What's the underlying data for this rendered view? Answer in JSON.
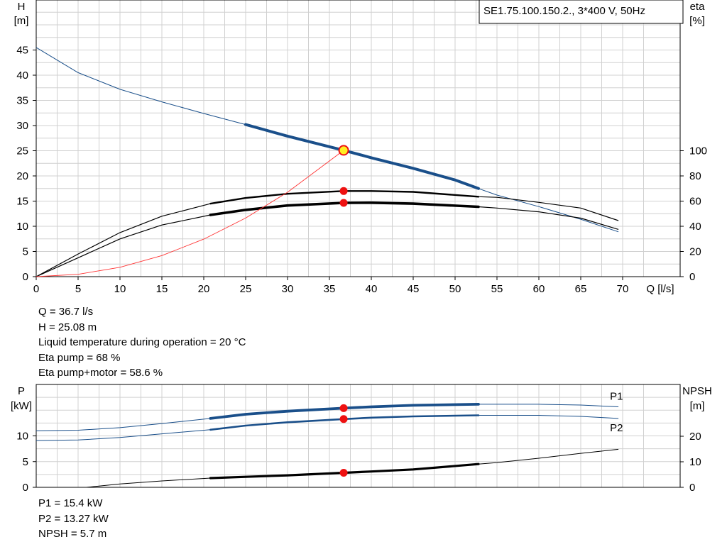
{
  "pump_label": "SE1.75.100.150.2., 3*400 V, 50Hz",
  "operating_point": [
    "Q = 36.7 l/s",
    "H = 25.08 m",
    "Liquid temperature during operation = 20 °C",
    "Eta pump = 68 %",
    "Eta pump+motor = 58.6 %"
  ],
  "power_results": [
    "P1 = 15.4 kW",
    "P2 = 13.27 kW",
    "NPSH = 5.7 m"
  ],
  "colors": {
    "head": "#1a4f8a",
    "efficiency": "#000000",
    "power": "#1a4f8a",
    "npsh": "#000000",
    "system_curve": "#ff3333",
    "duty_marker": "#ee1111",
    "operating_marker_fill": "#ffee22",
    "grid": "#d0d0d0"
  },
  "chart_data": [
    {
      "type": "line",
      "x_label": "Q [l/s]",
      "y_label_left": [
        "H",
        "[m]"
      ],
      "y_label_right": [
        "eta",
        "[%]"
      ],
      "x_range": [
        0,
        73
      ],
      "x_ticks": [
        0,
        5,
        10,
        15,
        20,
        25,
        30,
        35,
        40,
        45,
        50,
        55,
        60,
        65,
        70
      ],
      "y_left_range": [
        0,
        50
      ],
      "y_left_ticks": [
        0,
        5,
        10,
        15,
        20,
        25,
        30,
        35,
        40,
        45
      ],
      "y_right_range": [
        0,
        100
      ],
      "y_right_ticks": [
        0,
        20,
        40,
        60,
        80,
        100
      ],
      "grid": true,
      "series": [
        {
          "axis": "left",
          "role": "head",
          "points": [
            [
              0,
              45.5
            ],
            [
              5,
              40.5
            ],
            [
              10,
              37.2
            ],
            [
              15,
              34.7
            ],
            [
              20,
              32.4
            ],
            [
              25,
              30.2
            ],
            [
              30,
              27.9
            ],
            [
              36.7,
              25.08
            ],
            [
              40,
              23.6
            ],
            [
              45,
              21.5
            ],
            [
              50,
              19.2
            ],
            [
              52.8,
              17.5
            ],
            [
              55,
              16.2
            ],
            [
              60,
              13.9
            ],
            [
              65,
              11.4
            ],
            [
              69.5,
              8.9
            ]
          ],
          "operating_range": [
            20.8,
            52.8
          ]
        },
        {
          "axis": "right",
          "role": "eta_pump",
          "points": [
            [
              0,
              0
            ],
            [
              5,
              18
            ],
            [
              10,
              35
            ],
            [
              15,
              48
            ],
            [
              20.8,
              58
            ],
            [
              25,
              62.5
            ],
            [
              30,
              65.8
            ],
            [
              36.7,
              68
            ],
            [
              40,
              68
            ],
            [
              45,
              67.3
            ],
            [
              52.8,
              63.5
            ],
            [
              55,
              63
            ],
            [
              60,
              59
            ],
            [
              65,
              54.5
            ],
            [
              69.5,
              44.5
            ]
          ],
          "operating_range": [
            20.8,
            52.8
          ]
        },
        {
          "axis": "right",
          "role": "eta_pump_motor",
          "points": [
            [
              0,
              0
            ],
            [
              5,
              15
            ],
            [
              10,
              30
            ],
            [
              15,
              41
            ],
            [
              20.8,
              49
            ],
            [
              25,
              53
            ],
            [
              30,
              56.5
            ],
            [
              36.7,
              58.6
            ],
            [
              40,
              58.7
            ],
            [
              45,
              58
            ],
            [
              52.8,
              55.5
            ],
            [
              55,
              54.5
            ],
            [
              60,
              51.5
            ],
            [
              65,
              46.5
            ],
            [
              69.5,
              37.5
            ]
          ],
          "operating_range": [
            20.8,
            52.8
          ]
        },
        {
          "axis": "left",
          "role": "system_curve",
          "points": [
            [
              0,
              0
            ],
            [
              5,
              0.46
            ],
            [
              10,
              1.86
            ],
            [
              15,
              4.19
            ],
            [
              20,
              7.45
            ],
            [
              25,
              11.64
            ],
            [
              30,
              16.76
            ],
            [
              36.7,
              25.08
            ]
          ]
        }
      ],
      "duty_points": [
        {
          "axis": "left",
          "x": 36.7,
          "y": 25.08,
          "kind": "operating"
        },
        {
          "axis": "right",
          "x": 36.7,
          "y": 68,
          "kind": "duty"
        },
        {
          "axis": "right",
          "x": 36.7,
          "y": 58.6,
          "kind": "duty"
        }
      ]
    },
    {
      "type": "line",
      "x_range": [
        0,
        73
      ],
      "y_label_left": [
        "P",
        "[kW]"
      ],
      "y_label_right": [
        "NPSH",
        "[m]"
      ],
      "y_left_range": [
        0,
        15
      ],
      "y_left_ticks": [
        0,
        5,
        10
      ],
      "y_right_range": [
        0,
        30
      ],
      "y_right_ticks": [
        0,
        10,
        20
      ],
      "grid": true,
      "series": [
        {
          "name": "P1",
          "axis": "left",
          "role": "p1",
          "points": [
            [
              0,
              11.0
            ],
            [
              5,
              11.1
            ],
            [
              10,
              11.6
            ],
            [
              15,
              12.4
            ],
            [
              20.8,
              13.4
            ],
            [
              25,
              14.2
            ],
            [
              30,
              14.8
            ],
            [
              36.7,
              15.4
            ],
            [
              40,
              15.65
            ],
            [
              45,
              15.95
            ],
            [
              52.8,
              16.15
            ],
            [
              60,
              16.15
            ],
            [
              65,
              16.0
            ],
            [
              69.5,
              15.65
            ]
          ],
          "operating_range": [
            20.8,
            52.8
          ]
        },
        {
          "name": "P2",
          "axis": "left",
          "role": "p2",
          "points": [
            [
              0,
              9.1
            ],
            [
              5,
              9.2
            ],
            [
              10,
              9.7
            ],
            [
              15,
              10.4
            ],
            [
              20.8,
              11.2
            ],
            [
              25,
              12.0
            ],
            [
              30,
              12.65
            ],
            [
              36.7,
              13.27
            ],
            [
              40,
              13.55
            ],
            [
              45,
              13.8
            ],
            [
              52.8,
              14.0
            ],
            [
              60,
              14.0
            ],
            [
              65,
              13.8
            ],
            [
              69.5,
              13.4
            ]
          ],
          "operating_range": [
            20.8,
            52.8
          ]
        },
        {
          "axis": "right",
          "role": "npsh",
          "points": [
            [
              6,
              0
            ],
            [
              10,
              1.3
            ],
            [
              15,
              2.5
            ],
            [
              20.8,
              3.6
            ],
            [
              25,
              4.1
            ],
            [
              30,
              4.7
            ],
            [
              36.7,
              5.7
            ],
            [
              40,
              6.2
            ],
            [
              45,
              7.0
            ],
            [
              52.8,
              9.1
            ],
            [
              55,
              9.7
            ],
            [
              60,
              11.4
            ],
            [
              65,
              13.3
            ],
            [
              69.5,
              14.9
            ]
          ],
          "operating_range": [
            20.8,
            52.8
          ]
        }
      ],
      "duty_points": [
        {
          "axis": "left",
          "x": 36.7,
          "y": 15.4,
          "kind": "duty"
        },
        {
          "axis": "left",
          "x": 36.7,
          "y": 13.27,
          "kind": "duty"
        },
        {
          "axis": "right",
          "x": 36.7,
          "y": 5.7,
          "kind": "duty"
        }
      ]
    }
  ]
}
